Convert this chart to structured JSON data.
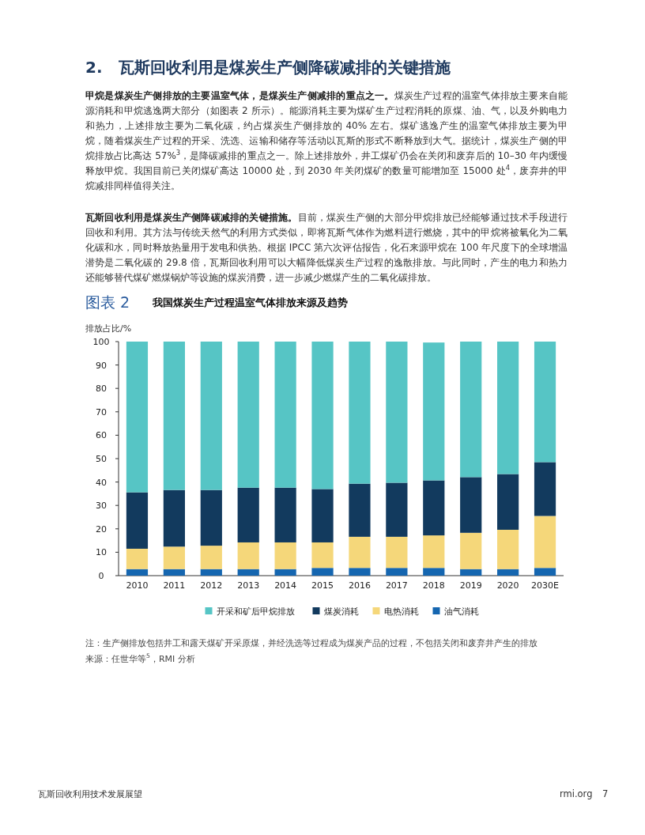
{
  "chart_data": {
    "type": "bar",
    "stacked": true,
    "title": "我国煤炭生产过程温室气体排放来源及趋势",
    "ylabel": "排放占比/%",
    "categories": [
      "2010",
      "2011",
      "2012",
      "2013",
      "2014",
      "2015",
      "2016",
      "2017",
      "2018",
      "2019",
      "2020",
      "2030E"
    ],
    "series": [
      {
        "name": "油气消耗",
        "color": "#1566b0",
        "values": [
          2.8,
          2.8,
          2.8,
          2.8,
          2.8,
          3.3,
          3.3,
          3.3,
          3.3,
          2.8,
          2.8,
          3.3
        ]
      },
      {
        "name": "电热消耗",
        "color": "#f5d77a",
        "values": [
          8.7,
          9.6,
          10.0,
          11.4,
          11.4,
          10.9,
          13.3,
          13.3,
          13.9,
          15.5,
          16.8,
          22.2
        ]
      },
      {
        "name": "煤炭消耗",
        "color": "#123a5e",
        "values": [
          24.1,
          24.2,
          23.8,
          23.4,
          23.4,
          22.8,
          22.7,
          23.1,
          23.5,
          23.8,
          23.8,
          23.0
        ]
      },
      {
        "name": "开采和矿后甲烷排放",
        "color": "#56c5c5",
        "values": [
          64.4,
          63.4,
          63.4,
          62.4,
          62.4,
          63.0,
          60.7,
          60.3,
          58.9,
          57.9,
          56.6,
          51.5
        ]
      }
    ],
    "ylim": [
      0,
      100
    ],
    "yticks": [
      0,
      10,
      20,
      30,
      40,
      50,
      60,
      70,
      80,
      90,
      100
    ],
    "legend": "bottom",
    "annotations": [
      "2.　瓦斯回收利用是煤炭生产侧降碳减排的关键措施",
      "甲烷是煤炭生产侧排放的主要温室气体，是煤炭生产侧减排的重点之一。",
      "煤炭生产过程的温室气体排放主要来自能源消耗和甲烷逃逸两大部分（如图表 2 所示）。能源消耗主要为煤矿生产过程消耗的原煤、油、气，以及外购电力和热力，上述排放主要为二氧化碳，约占煤炭生产侧排放的 40% 左右。煤矿逃逸产生的温室气体排放主要为甲烷，随着煤炭生产过程的开采、洗选、运输和储存等活动以瓦斯的形式不断释放到大气。据统计，煤炭生产侧的甲烷排放占比高达 57%$^{3}$，是降碳减排的重点之一。除上述排放外，井工煤矿仍会在关闭和废弃后的 10–30 年内缓慢释放甲烷。我国目前已关闭煤矿高达 10000 处，到 2030 年关闭煤矿的数量可能增加至 15000 处$^{4}$，废弃井的甲烷减排同样值得关注。",
      "瓦斯回收利用是煤炭生产侧降碳减排的关键措施。",
      "目前，煤炭生产侧的大部分甲烷排放已经能够通过技术手段进行回收和利用。其方法与传统天然气的利用方式类似，即将瓦斯气体作为燃料进行燃烧，其中的甲烷将被氧化为二氧化碳和水，同时释放热量用于发电和供热。根据 IPCC 第六次评估报告，化石来源甲烷在 100 年尺度下的全球增温潜势是二氧化碳的 29.8 倍，瓦斯回收利用可以大幅降低煤炭生产过程的逸散排放。与此同时，产生的电力和热力还能够替代煤矿燃煤锅炉等设施的煤炭消费，进一步减少燃煤产生的二氧化碳排放。",
      "图表 2",
      "注：生产侧排放包括井工和露天煤矿开采原煤，并经洗选等过程成为煤炭产品的过程，不包括关闭和废弃井产生的排放",
      "来源：任世华等$^{5}$，RMI 分析",
      "瓦斯回收利用技术发展展望",
      "rmi.org",
      "7"
    ]
  }
}
